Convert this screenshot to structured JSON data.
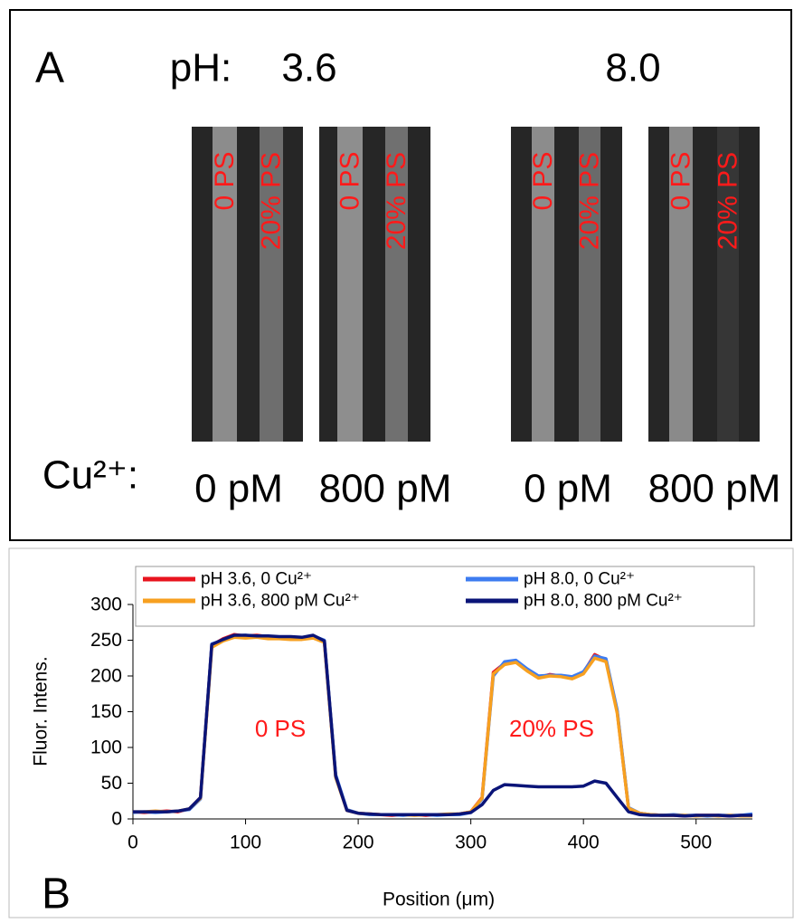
{
  "panel_a": {
    "panel_label": "A",
    "ph_label": "pH:",
    "ph_values": [
      "3.6",
      "8.0"
    ],
    "images": [
      {
        "labels": [
          "0 PS",
          "20% PS"
        ]
      },
      {
        "labels": [
          "0 PS",
          "20% PS"
        ]
      },
      {
        "labels": [
          "0 PS",
          "20% PS"
        ]
      },
      {
        "labels": [
          "0 PS",
          "20% PS"
        ]
      }
    ],
    "cu_label": "Cu²⁺:",
    "cu_values": [
      "0 pM",
      "800 pM",
      "0 pM",
      "800 pM"
    ]
  },
  "chart_data": {
    "type": "line",
    "panel_label": "B",
    "x_label": "Position (μm)",
    "y_label": "Fluor. Intens.",
    "annotations": [
      "0 PS",
      "20% PS"
    ],
    "x": [
      0,
      10,
      20,
      30,
      40,
      50,
      60,
      70,
      80,
      90,
      100,
      110,
      120,
      130,
      140,
      150,
      160,
      170,
      180,
      190,
      200,
      210,
      220,
      230,
      240,
      250,
      260,
      270,
      280,
      290,
      300,
      310,
      320,
      330,
      340,
      350,
      360,
      370,
      380,
      390,
      400,
      410,
      420,
      430,
      440,
      450,
      460,
      470,
      480,
      490,
      500,
      510,
      520,
      530,
      540,
      550
    ],
    "series": [
      {
        "name": "pH 3.6, 0 Cu²⁺",
        "color": "#e8141e",
        "values": [
          10,
          9,
          10,
          11,
          10,
          14,
          30,
          243,
          252,
          258,
          256,
          257,
          255,
          254,
          253,
          252,
          255,
          248,
          60,
          12,
          8,
          7,
          6,
          5,
          6,
          6,
          5,
          6,
          6,
          7,
          10,
          30,
          205,
          218,
          220,
          208,
          198,
          202,
          200,
          197,
          205,
          230,
          222,
          150,
          15,
          8,
          6,
          5,
          5,
          4,
          5,
          5,
          5,
          4,
          5,
          4
        ]
      },
      {
        "name": "pH 8.0, 0 Cu²⁺",
        "color": "#3d7cf0",
        "values": [
          9,
          10,
          9,
          10,
          11,
          13,
          28,
          245,
          250,
          256,
          257,
          255,
          256,
          253,
          254,
          253,
          256,
          250,
          62,
          13,
          8,
          6,
          6,
          6,
          5,
          6,
          6,
          5,
          6,
          6,
          9,
          28,
          200,
          220,
          222,
          210,
          200,
          201,
          201,
          199,
          206,
          228,
          224,
          152,
          16,
          8,
          6,
          5,
          6,
          5,
          5,
          4,
          5,
          5,
          5,
          7
        ]
      },
      {
        "name": "pH 3.6, 800 pM Cu²⁺",
        "color": "#f7a020",
        "values": [
          10,
          10,
          11,
          10,
          11,
          14,
          29,
          240,
          249,
          254,
          253,
          254,
          252,
          252,
          251,
          251,
          253,
          247,
          58,
          12,
          8,
          7,
          6,
          6,
          6,
          5,
          6,
          6,
          7,
          7,
          10,
          29,
          203,
          216,
          219,
          207,
          197,
          200,
          199,
          196,
          203,
          225,
          220,
          148,
          15,
          8,
          6,
          5,
          5,
          5,
          4,
          5,
          4,
          5,
          4,
          4
        ]
      },
      {
        "name": "pH 8.0, 800 pM Cu²⁺",
        "color": "#0a1478",
        "values": [
          10,
          10,
          10,
          10,
          11,
          14,
          30,
          244,
          251,
          257,
          257,
          256,
          256,
          255,
          255,
          254,
          257,
          249,
          60,
          12,
          8,
          7,
          6,
          6,
          6,
          6,
          6,
          6,
          6,
          7,
          9,
          20,
          40,
          48,
          47,
          46,
          45,
          45,
          45,
          45,
          46,
          53,
          50,
          30,
          10,
          6,
          5,
          5,
          5,
          4,
          5,
          5,
          5,
          4,
          5,
          5
        ],
        "legend_row": 1
      }
    ],
    "xlim": [
      0,
      550
    ],
    "xticks": [
      0,
      100,
      200,
      300,
      400,
      500
    ],
    "ylim": [
      0,
      300
    ],
    "yticks": [
      0,
      50,
      100,
      150,
      200,
      250,
      300
    ]
  }
}
